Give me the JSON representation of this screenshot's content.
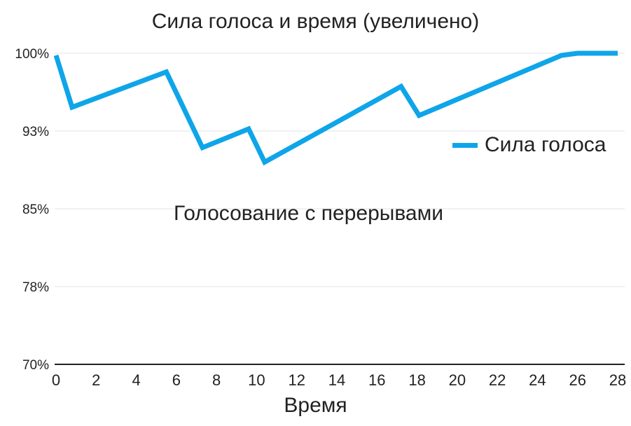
{
  "chart_data": {
    "type": "line",
    "title": "Сила голоса и время (увеличено)",
    "xlabel": "Время",
    "ylabel": "",
    "annotation": "Голосование с перерывами",
    "xlim": [
      0,
      28
    ],
    "ylim": [
      70,
      100
    ],
    "xticks": [
      "0",
      "2",
      "4",
      "6",
      "8",
      "10",
      "12",
      "14",
      "16",
      "18",
      "20",
      "22",
      "24",
      "26",
      "28"
    ],
    "yticks": [
      {
        "value": 100,
        "label": "100%"
      },
      {
        "value": 92.5,
        "label": "93%"
      },
      {
        "value": 85,
        "label": "85%"
      },
      {
        "value": 77.5,
        "label": "78%"
      },
      {
        "value": 70,
        "label": "70%"
      }
    ],
    "grid": true,
    "legend_position": "right",
    "series": [
      {
        "name": "Сила голоса",
        "color": "#0ea5e9",
        "x": [
          0,
          0.8,
          5.5,
          7.3,
          9.6,
          10.4,
          17.2,
          18.1,
          25.2,
          26,
          28
        ],
        "y": [
          99.8,
          94.8,
          98.2,
          90.9,
          92.7,
          89.5,
          96.8,
          94.0,
          99.8,
          100,
          100
        ]
      }
    ]
  }
}
